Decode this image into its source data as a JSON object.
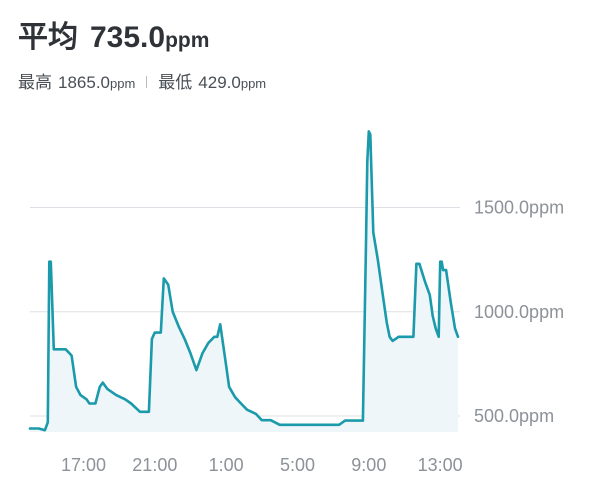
{
  "summary": {
    "avg_label": "平均",
    "avg_value": "735.0",
    "avg_unit": "ppm",
    "max_label": "最高",
    "max_value": "1865.0",
    "max_unit": "ppm",
    "min_label": "最低",
    "min_value": "429.0",
    "min_unit": "ppm"
  },
  "colors": {
    "line": "#1a9aaa",
    "fill": "#eef6f9",
    "grid": "#dde1e5",
    "tick": "#8d9298"
  },
  "chart_data": {
    "type": "area",
    "title": "",
    "xlabel": "",
    "ylabel": "",
    "x_ticks": [
      "17:00",
      "21:00",
      "1:00",
      "5:00",
      "9:00",
      "13:00"
    ],
    "y_ticks": [
      "500.0ppm",
      "1000.0ppm",
      "1500.0ppm"
    ],
    "ylim": [
      429,
      1865
    ],
    "grid": true,
    "series": [
      {
        "values": [
          [
            "14:00",
            440
          ],
          [
            "14:30",
            440
          ],
          [
            "14:50",
            432
          ],
          [
            "15:00",
            470
          ],
          [
            "15:05",
            1240
          ],
          [
            "15:10",
            1240
          ],
          [
            "15:20",
            820
          ],
          [
            "15:40",
            820
          ],
          [
            "16:00",
            820
          ],
          [
            "16:20",
            790
          ],
          [
            "16:35",
            640
          ],
          [
            "16:50",
            600
          ],
          [
            "17:10",
            580
          ],
          [
            "17:20",
            560
          ],
          [
            "17:40",
            560
          ],
          [
            "17:55",
            640
          ],
          [
            "18:05",
            660
          ],
          [
            "18:20",
            630
          ],
          [
            "18:50",
            600
          ],
          [
            "19:20",
            580
          ],
          [
            "19:40",
            560
          ],
          [
            "20:10",
            520
          ],
          [
            "20:40",
            520
          ],
          [
            "20:50",
            870
          ],
          [
            "21:00",
            900
          ],
          [
            "21:20",
            900
          ],
          [
            "21:30",
            1160
          ],
          [
            "21:45",
            1130
          ],
          [
            "22:00",
            1000
          ],
          [
            "22:20",
            930
          ],
          [
            "22:40",
            870
          ],
          [
            "23:00",
            800
          ],
          [
            "23:20",
            720
          ],
          [
            "23:40",
            800
          ],
          [
            "0:00",
            850
          ],
          [
            "0:20",
            880
          ],
          [
            "0:30",
            880
          ],
          [
            "0:40",
            940
          ],
          [
            "0:50",
            840
          ],
          [
            "1:00",
            740
          ],
          [
            "1:10",
            640
          ],
          [
            "1:30",
            590
          ],
          [
            "1:50",
            560
          ],
          [
            "2:10",
            530
          ],
          [
            "2:40",
            510
          ],
          [
            "3:00",
            480
          ],
          [
            "3:30",
            480
          ],
          [
            "4:00",
            458
          ],
          [
            "6:00",
            458
          ],
          [
            "7:20",
            458
          ],
          [
            "7:40",
            478
          ],
          [
            "8:40",
            478
          ],
          [
            "8:50",
            1300
          ],
          [
            "8:55",
            1720
          ],
          [
            "9:00",
            1865
          ],
          [
            "9:05",
            1850
          ],
          [
            "9:15",
            1380
          ],
          [
            "9:30",
            1250
          ],
          [
            "9:45",
            1100
          ],
          [
            "10:00",
            950
          ],
          [
            "10:10",
            880
          ],
          [
            "10:20",
            860
          ],
          [
            "10:40",
            880
          ],
          [
            "11:15",
            880
          ],
          [
            "11:30",
            880
          ],
          [
            "11:40",
            1230
          ],
          [
            "11:50",
            1230
          ],
          [
            "12:10",
            1140
          ],
          [
            "12:25",
            1080
          ],
          [
            "12:35",
            980
          ],
          [
            "12:45",
            920
          ],
          [
            "12:55",
            880
          ],
          [
            "13:00",
            1240
          ],
          [
            "13:05",
            1240
          ],
          [
            "13:10",
            1200
          ],
          [
            "13:20",
            1200
          ],
          [
            "13:35",
            1050
          ],
          [
            "13:50",
            920
          ],
          [
            "14:00",
            880
          ]
        ]
      }
    ]
  }
}
